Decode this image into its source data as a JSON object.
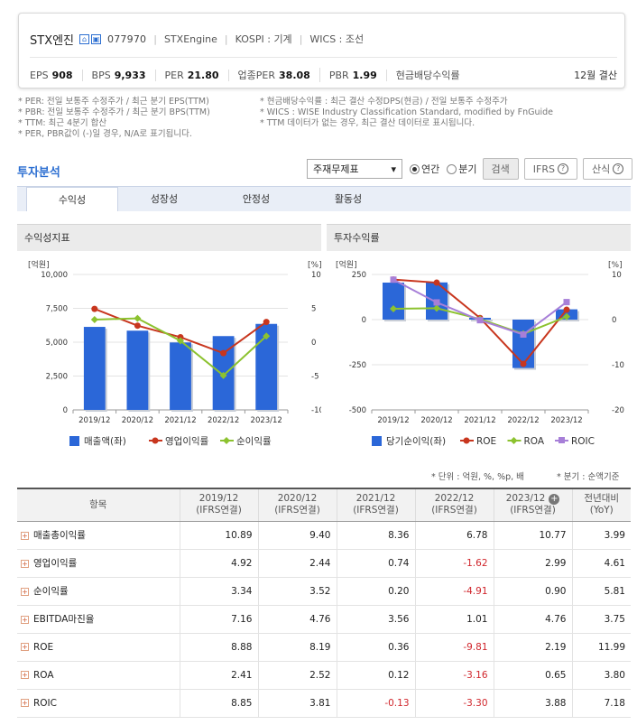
{
  "header": {
    "company": "STX엔진",
    "code": "077970",
    "en_name": "STXEngine",
    "market": "KOSPI : 기계",
    "wics": "WICS : 조선",
    "metrics": [
      {
        "label": "EPS",
        "value": "908"
      },
      {
        "label": "BPS",
        "value": "9,933"
      },
      {
        "label": "PER",
        "value": "21.80"
      },
      {
        "label": "업종PER",
        "value": "38.08"
      },
      {
        "label": "PBR",
        "value": "1.99"
      },
      {
        "label": "현금배당수익률",
        "value": ""
      }
    ],
    "settle": "12월 결산"
  },
  "notes": {
    "left": [
      "* PER: 전일 보통주 수정주가 / 최근 분기 EPS(TTM)",
      "* PBR: 전일 보통주 수정주가 / 최근 분기 BPS(TTM)",
      "* TTM: 최근 4분기 합산",
      "* PER, PBR값이 (-)일 경우, N/A로 표기됩니다."
    ],
    "right": [
      "* 현금배당수익률 : 최근 결산 수정DPS(현금) / 전일 보통주 수정주가",
      "* WICS : WISE Industry Classification Standard, modified by FnGuide",
      "* TTM 데이터가 없는 경우, 최근 결산 데이터로 표시됩니다."
    ]
  },
  "section": {
    "title": "투자분석",
    "select": "주재무제표",
    "radio_annual": "연간",
    "radio_quarter": "분기",
    "search_btn": "검색",
    "ifrs_btn": "IFRS",
    "formula_btn": "산식"
  },
  "tabs": [
    "수익성",
    "성장성",
    "안정성",
    "활동성"
  ],
  "panels": {
    "left_title": "수익성지표",
    "right_title": "투자수익률"
  },
  "chart_data": [
    {
      "type": "bar",
      "title": "수익성지표",
      "categories": [
        "2019/12",
        "2020/12",
        "2021/12",
        "2022/12",
        "2023/12"
      ],
      "left_unit": "[억원]",
      "right_unit": "[%]",
      "left_ticks": [
        "10,000",
        "7,500",
        "5,000",
        "2,500",
        "0"
      ],
      "right_ticks": [
        "10",
        "5",
        "0",
        "-5",
        "-10"
      ],
      "ylim_left": [
        0,
        10000
      ],
      "ylim_right": [
        -10,
        10
      ],
      "series": [
        {
          "name": "매출액(좌)",
          "kind": "bar",
          "axis": "left",
          "color": "#2b67d8",
          "values": [
            6130,
            5850,
            4980,
            5450,
            6350
          ]
        },
        {
          "name": "영업이익률",
          "kind": "line",
          "axis": "right",
          "color": "#c8361e",
          "values": [
            4.92,
            2.44,
            0.74,
            -1.62,
            2.99
          ]
        },
        {
          "name": "순이익률",
          "kind": "line",
          "axis": "right",
          "color": "#8cc22f",
          "values": [
            3.34,
            3.52,
            0.2,
            -4.91,
            0.9
          ]
        }
      ]
    },
    {
      "type": "bar",
      "title": "투자수익률",
      "categories": [
        "2019/12",
        "2020/12",
        "2021/12",
        "2022/12",
        "2023/12"
      ],
      "left_unit": "[억원]",
      "right_unit": "[%]",
      "left_ticks": [
        "250",
        "0",
        "-250",
        "-500"
      ],
      "right_ticks": [
        "10",
        "0",
        "-10",
        "-20"
      ],
      "ylim_left": [
        -500,
        250
      ],
      "ylim_right": [
        -20,
        10
      ],
      "series": [
        {
          "name": "당기순이익(좌)",
          "kind": "bar",
          "axis": "left",
          "color": "#2b67d8",
          "values": [
            205,
            206,
            10,
            -268,
            57
          ]
        },
        {
          "name": "ROE",
          "kind": "line",
          "axis": "right",
          "color": "#c8361e",
          "values": [
            8.88,
            8.19,
            0.36,
            -9.81,
            2.19
          ]
        },
        {
          "name": "ROA",
          "kind": "line",
          "axis": "right",
          "color": "#8cc22f",
          "values": [
            2.41,
            2.52,
            0.12,
            -3.16,
            0.65
          ]
        },
        {
          "name": "ROIC",
          "kind": "line",
          "axis": "right",
          "color": "#a77fd8",
          "values": [
            8.85,
            3.81,
            -0.13,
            -3.3,
            3.88
          ]
        }
      ]
    }
  ],
  "table": {
    "unit_note": "* 단위 : 억원, %, %p, 배",
    "quarter_note": "* 분기 : 순액기준",
    "headers": [
      {
        "top": "항목",
        "sub": ""
      },
      {
        "top": "2019/12",
        "sub": "(IFRS연결)"
      },
      {
        "top": "2020/12",
        "sub": "(IFRS연결)"
      },
      {
        "top": "2021/12",
        "sub": "(IFRS연결)"
      },
      {
        "top": "2022/12",
        "sub": "(IFRS연결)"
      },
      {
        "top": "2023/12",
        "sub": "(IFRS연결)"
      },
      {
        "top": "전년대비",
        "sub": "(YoY)"
      }
    ],
    "rows": [
      {
        "label": "매출총이익률",
        "values": [
          "10.89",
          "9.40",
          "8.36",
          "6.78",
          "10.77",
          "3.99"
        ]
      },
      {
        "label": "영업이익률",
        "values": [
          "4.92",
          "2.44",
          "0.74",
          "-1.62",
          "2.99",
          "4.61"
        ]
      },
      {
        "label": "순이익률",
        "values": [
          "3.34",
          "3.52",
          "0.20",
          "-4.91",
          "0.90",
          "5.81"
        ]
      },
      {
        "label": "EBITDA마진율",
        "values": [
          "7.16",
          "4.76",
          "3.56",
          "1.01",
          "4.76",
          "3.75"
        ]
      },
      {
        "label": "ROE",
        "values": [
          "8.88",
          "8.19",
          "0.36",
          "-9.81",
          "2.19",
          "11.99"
        ]
      },
      {
        "label": "ROA",
        "values": [
          "2.41",
          "2.52",
          "0.12",
          "-3.16",
          "0.65",
          "3.80"
        ]
      },
      {
        "label": "ROIC",
        "values": [
          "8.85",
          "3.81",
          "-0.13",
          "-3.30",
          "3.88",
          "7.18"
        ]
      }
    ]
  }
}
